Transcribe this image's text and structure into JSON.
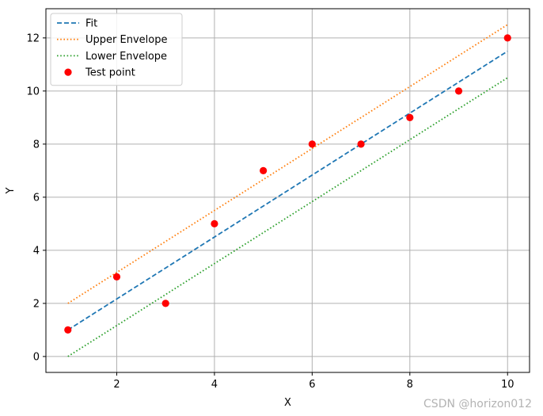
{
  "chart_data": {
    "type": "line",
    "title": "",
    "xlabel": "X",
    "ylabel": "Y",
    "xlim": [
      0.55,
      10.45
    ],
    "ylim": [
      -0.6,
      13.1
    ],
    "xticks": [
      2,
      4,
      6,
      8,
      10
    ],
    "yticks": [
      0,
      2,
      4,
      6,
      8,
      10,
      12
    ],
    "grid": true,
    "legend_position": "upper-left",
    "series": [
      {
        "name": "Fit",
        "kind": "line",
        "style": "dashed",
        "color": "#1f77b4",
        "x": [
          1,
          10
        ],
        "y": [
          1.0,
          11.5
        ]
      },
      {
        "name": "Upper Envelope",
        "kind": "line",
        "style": "dotted",
        "color": "#ff7f0e",
        "x": [
          1,
          10
        ],
        "y": [
          2.0,
          12.5
        ]
      },
      {
        "name": "Lower Envelope",
        "kind": "line",
        "style": "dotted",
        "color": "#2ca02c",
        "x": [
          1,
          10
        ],
        "y": [
          0.0,
          10.5
        ]
      },
      {
        "name": "Test point",
        "kind": "scatter",
        "color": "#ff0000",
        "x": [
          1,
          2,
          3,
          4,
          5,
          6,
          7,
          8,
          9,
          10
        ],
        "y": [
          1,
          3,
          2,
          5,
          7,
          8,
          8,
          9,
          10,
          12
        ]
      }
    ]
  },
  "watermark": "CSDN @horizon012"
}
